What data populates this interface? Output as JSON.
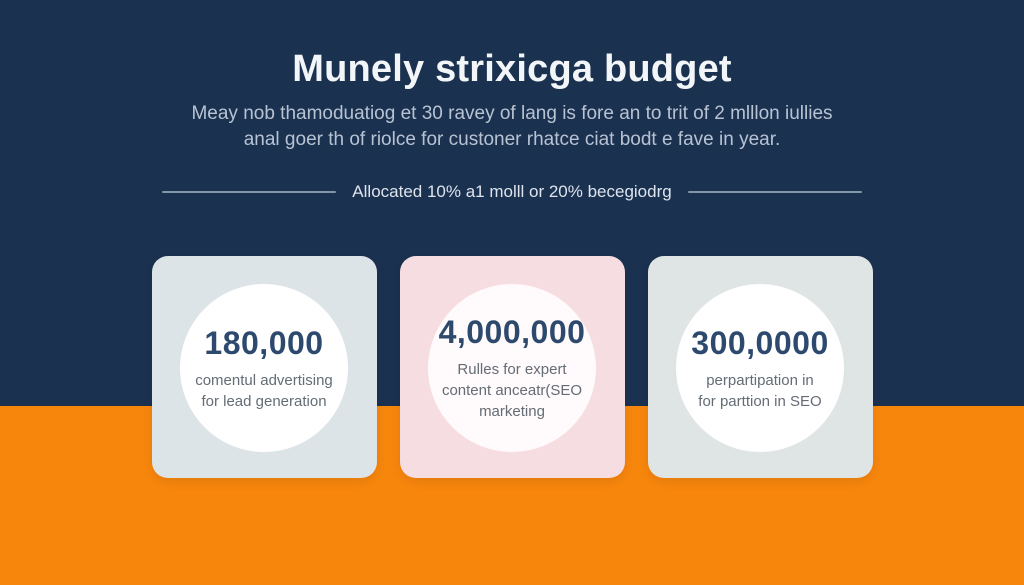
{
  "slide": {
    "title": "Munely strixicga budget",
    "subtitle_line1": "Meay nob thamoduatiog et 30 ravey of lang is fore an to trit of 2 mlllon iullies",
    "subtitle_line2": "anal goer th of riolce for custoner rhatce ciat bodt e fave in year.",
    "divider_label": "Allocated 10% a1 molll or 20% becegiodrg",
    "colors": {
      "navy_background": "#1b3150",
      "orange_background": "#f7860d",
      "value_text": "#2d4a6e",
      "label_text": "#646c75",
      "subtitle_text": "#b7c3d3",
      "divider_line": "#8496ac"
    },
    "cards": [
      {
        "value": "180,000",
        "label_lines": [
          "comentul advertising",
          "for lead generation"
        ],
        "bg": "#dde4e7",
        "circle_bg": "#ffffff"
      },
      {
        "value": "4,000,000",
        "label_lines": [
          "Rulles for expert",
          "content anceatr(SEO",
          "marketing"
        ],
        "bg": "#f6dde1",
        "circle_bg": "#fffafb"
      },
      {
        "value": "300,0000",
        "label_lines": [
          "perpartipation in",
          "for parttion in SEO"
        ],
        "bg": "#dfe5e5",
        "circle_bg": "#ffffff"
      }
    ]
  }
}
